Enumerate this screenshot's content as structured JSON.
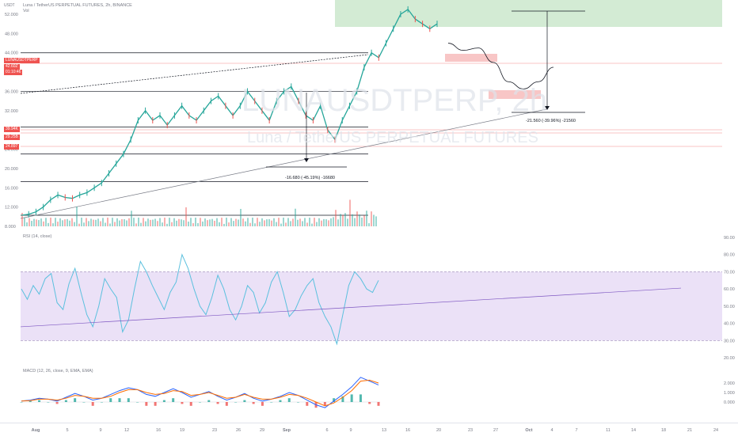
{
  "header": {
    "symbol_line": "Luna / TetherUS PERPETUAL FUTURES, 2h, BINANCE",
    "volume_label": "Vol",
    "currency": "USDT"
  },
  "watermark": {
    "ticker": "LUNAUSDTPERP, 2h",
    "subtitle": "Luna / TetherUS PERPETUAL FUTURES"
  },
  "price_tags": [
    {
      "symbol": "LUNAUSDTPERP",
      "value": "42.60Z",
      "sub": "01:10:46",
      "color": "#ef5350"
    },
    {
      "value": "39.94K",
      "color": "#ef5350"
    },
    {
      "value": "29.25B",
      "color": "#ef5350"
    },
    {
      "value": "24.897",
      "color": "#ef5350"
    }
  ],
  "annotations": {
    "drop_1": "-16.680 (-45.19%) -16680",
    "drop_2": "-21.560 (-39.96%) -21560"
  },
  "indicators": {
    "rsi_title": "RSI (14, close)",
    "macd_title": "MACD (12, 26, close, 9, EMA, EMA)"
  },
  "colors": {
    "rsi_line": "#5bc0de",
    "rsi_band": "#e6d9f5",
    "macd_line": "#2962ff",
    "signal_line": "#ff6d00",
    "hist_up": "#26a69a",
    "hist_down": "#ef5350",
    "target_zone": "#c8e6c9",
    "resistance_zone": "#f8c6c6"
  },
  "chart_data": [
    {
      "type": "line",
      "name": "price",
      "x": [
        "Aug",
        "5",
        "9",
        "12",
        "16",
        "19",
        "23",
        "26",
        "29",
        "Sep",
        "6",
        "9",
        "13",
        "16",
        "20",
        "23",
        "27",
        "Oct",
        "4",
        "7",
        "11",
        "14",
        "18",
        "21",
        "24"
      ],
      "y_ticks": [
        "52.000",
        "48.000",
        "44.000",
        "40.000",
        "36.000",
        "32.000",
        "28.000",
        "24.000",
        "20.000",
        "16.000",
        "12.000",
        "8.000"
      ],
      "ylim": [
        8,
        52
      ],
      "key_levels": [
        44,
        36,
        28.6,
        23,
        17.3,
        10.3
      ],
      "path_values": [
        10.3,
        10.5,
        11,
        12,
        13.5,
        14.5,
        14,
        13.8,
        14.5,
        15,
        16,
        17,
        19,
        21,
        23,
        26,
        30,
        32,
        30,
        31,
        29,
        31,
        33,
        31,
        30,
        32,
        34,
        35,
        33,
        31,
        33,
        36,
        34,
        32,
        30,
        34,
        36,
        37,
        34,
        31,
        30,
        33,
        28,
        26,
        30,
        33,
        36,
        41,
        44,
        43,
        46,
        49,
        52,
        53,
        51,
        50,
        49,
        50
      ],
      "projection": [
        46,
        44.5,
        45,
        42,
        38,
        36.5,
        38,
        41
      ]
    },
    {
      "type": "line",
      "name": "RSI",
      "ylim": [
        20,
        90
      ],
      "y_ticks": [
        "90.00",
        "80.00",
        "70.00",
        "60.00",
        "50.00",
        "40.00",
        "30.00",
        "20.00"
      ],
      "band": [
        30,
        70
      ],
      "values": [
        60,
        54,
        62,
        57,
        66,
        69,
        52,
        48,
        63,
        72,
        58,
        45,
        38,
        50,
        66,
        60,
        55,
        35,
        42,
        60,
        76,
        70,
        62,
        55,
        48,
        58,
        64,
        80,
        72,
        60,
        50,
        45,
        55,
        68,
        60,
        48,
        42,
        50,
        62,
        58,
        46,
        52,
        64,
        70,
        58,
        44,
        48,
        56,
        62,
        66,
        52,
        44,
        38,
        28,
        45,
        62,
        70,
        66,
        60,
        58,
        65
      ]
    },
    {
      "type": "line",
      "name": "MACD",
      "y_ticks": [
        "2.000",
        "1.000",
        "0.000"
      ],
      "macd": [
        0.1,
        0.2,
        0.4,
        0.3,
        0.1,
        0.5,
        0.9,
        0.6,
        0.2,
        0.4,
        0.8,
        1.2,
        1.5,
        1.3,
        0.8,
        0.6,
        1.0,
        1.4,
        1.0,
        0.5,
        0.8,
        1.1,
        0.6,
        0.2,
        0.5,
        0.9,
        0.4,
        0.1,
        0.3,
        0.6,
        1.0,
        0.7,
        0.2,
        -0.3,
        -0.6,
        0.1,
        0.8,
        1.6,
        2.6,
        2.2,
        1.8
      ],
      "signal": [
        0.1,
        0.15,
        0.3,
        0.3,
        0.2,
        0.4,
        0.7,
        0.6,
        0.4,
        0.4,
        0.6,
        1.0,
        1.3,
        1.3,
        1.0,
        0.8,
        0.9,
        1.2,
        1.1,
        0.7,
        0.8,
        1.0,
        0.7,
        0.4,
        0.5,
        0.8,
        0.5,
        0.3,
        0.3,
        0.5,
        0.8,
        0.7,
        0.4,
        0.0,
        -0.4,
        -0.1,
        0.5,
        1.2,
        2.2,
        2.3,
        2.0
      ]
    }
  ]
}
